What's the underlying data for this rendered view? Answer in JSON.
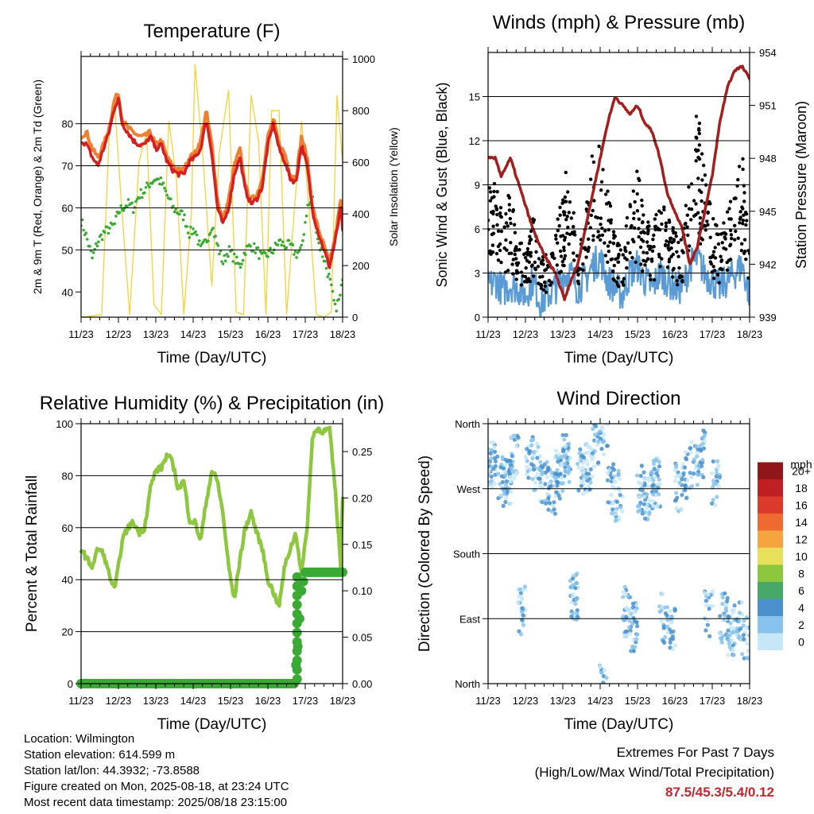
{
  "chart_data": [
    {
      "id": "temperature",
      "type": "line",
      "title": "Temperature (F)",
      "xlabel": "Time (Day/UTC)",
      "ylabel": "2m & 9m T (Red, Orange) & 2m Td (Green)",
      "ylabel_right": "Solar Insolation (Yellow)",
      "xticks": [
        "11/23",
        "12/23",
        "13/23",
        "14/23",
        "15/23",
        "16/23",
        "17/23",
        "18/23"
      ],
      "xlim": [
        0,
        7
      ],
      "yticks": [
        40,
        50,
        60,
        70,
        80
      ],
      "ylim": [
        34,
        96
      ],
      "yticks_right": [
        0,
        200,
        400,
        600,
        800,
        1000
      ],
      "ylim_right": [
        0,
        1010
      ],
      "series": [
        {
          "color": "#f08030",
          "x": [
            0,
            0.15,
            0.3,
            0.45,
            0.6,
            0.75,
            0.9,
            1.0,
            1.1,
            1.25,
            1.4,
            1.55,
            1.7,
            1.85,
            2.0,
            2.15,
            2.3,
            2.45,
            2.6,
            2.75,
            2.9,
            3.05,
            3.2,
            3.35,
            3.5,
            3.65,
            3.8,
            3.95,
            4.1,
            4.25,
            4.4,
            4.55,
            4.7,
            4.85,
            5.0,
            5.15,
            5.3,
            5.45,
            5.6,
            5.75,
            5.9,
            6.05,
            6.2,
            6.35,
            6.5,
            6.65,
            6.8,
            6.95,
            7.0
          ],
          "y": [
            77,
            78,
            74,
            72,
            75,
            79,
            86,
            87,
            81,
            79,
            78,
            77,
            77,
            78,
            75,
            76,
            72,
            70,
            69,
            69,
            72,
            73,
            76,
            83,
            75,
            62,
            57,
            62,
            70,
            74,
            65,
            62,
            63,
            67,
            77,
            81,
            75,
            73,
            68,
            67,
            77,
            72,
            60,
            55,
            51,
            47,
            53,
            62,
            57
          ]
        },
        {
          "color": "#d42020",
          "x": [
            0,
            0.15,
            0.3,
            0.45,
            0.6,
            0.75,
            0.9,
            1.0,
            1.1,
            1.25,
            1.4,
            1.55,
            1.7,
            1.85,
            2.0,
            2.15,
            2.3,
            2.45,
            2.6,
            2.75,
            2.9,
            3.05,
            3.2,
            3.35,
            3.5,
            3.65,
            3.8,
            3.95,
            4.1,
            4.25,
            4.4,
            4.55,
            4.7,
            4.85,
            5.0,
            5.15,
            5.3,
            5.45,
            5.6,
            5.75,
            5.9,
            6.05,
            6.2,
            6.35,
            6.5,
            6.65,
            6.8,
            6.95,
            7.0
          ],
          "y": [
            76,
            75,
            72,
            70,
            74,
            78,
            84,
            86,
            80,
            78,
            76,
            75,
            75,
            77,
            74,
            75,
            71,
            69,
            68,
            68,
            71,
            72,
            74,
            81,
            73,
            60,
            56,
            60,
            68,
            72,
            64,
            61,
            62,
            65,
            75,
            80,
            74,
            71,
            67,
            66,
            75,
            70,
            59,
            54,
            50,
            46,
            52,
            60,
            55
          ]
        },
        {
          "color": "#3aaa35",
          "x": [
            0,
            0.15,
            0.3,
            0.45,
            0.6,
            0.75,
            0.9,
            1.0,
            1.1,
            1.25,
            1.4,
            1.55,
            1.7,
            1.85,
            2.0,
            2.15,
            2.3,
            2.45,
            2.6,
            2.75,
            2.9,
            3.05,
            3.2,
            3.35,
            3.5,
            3.65,
            3.8,
            3.95,
            4.1,
            4.25,
            4.4,
            4.55,
            4.7,
            4.85,
            5.0,
            5.15,
            5.3,
            5.45,
            5.6,
            5.75,
            5.9,
            6.05,
            6.2,
            6.35,
            6.5,
            6.65,
            6.8,
            6.95,
            7.0
          ],
          "y": [
            57,
            53,
            48,
            52,
            54,
            55,
            56,
            59,
            60,
            61,
            60,
            63,
            64,
            66,
            67,
            66,
            63,
            60,
            59,
            58,
            54,
            55,
            50,
            52,
            56,
            51,
            47,
            50,
            48,
            46,
            50,
            51,
            50,
            48,
            49,
            50,
            52,
            51,
            51,
            49,
            50,
            60,
            62,
            52,
            48,
            43,
            36,
            39,
            44
          ]
        },
        {
          "color": "#f5d23a",
          "axis": "right",
          "x": [
            0,
            0.55,
            0.75,
            0.9,
            1.1,
            1.3,
            1.55,
            1.75,
            1.95,
            2.15,
            2.35,
            2.55,
            2.75,
            2.95,
            3.05,
            3.25,
            3.5,
            3.7,
            3.95,
            4.15,
            4.35,
            4.55,
            4.75,
            4.95,
            5.1,
            5.3,
            5.5,
            5.7,
            5.9,
            6.1,
            6.3,
            6.5,
            6.7,
            6.85,
            7.0
          ],
          "y": [
            0,
            10,
            700,
            820,
            400,
            10,
            600,
            720,
            50,
            10,
            760,
            540,
            10,
            400,
            980,
            640,
            120,
            640,
            880,
            20,
            10,
            860,
            680,
            10,
            800,
            800,
            10,
            400,
            760,
            420,
            10,
            0,
            20,
            860,
            600
          ]
        }
      ]
    },
    {
      "id": "winds",
      "type": "scatter",
      "title": "Winds (mph) & Pressure (mb)",
      "xlabel": "Time (Day/UTC)",
      "ylabel": "Sonic Wind & Gust (Blue, Black)",
      "ylabel_right": "Station Pressure (Maroon)",
      "xticks": [
        "11/23",
        "12/23",
        "13/23",
        "14/23",
        "15/23",
        "16/23",
        "17/23",
        "18/23"
      ],
      "xlim": [
        0,
        7
      ],
      "yticks": [
        0,
        3,
        6,
        9,
        12,
        15
      ],
      "ylim": [
        0,
        18
      ],
      "yticks_right": [
        939,
        942,
        945,
        948,
        951,
        954
      ],
      "ylim_right": [
        939,
        954
      ],
      "series": [
        {
          "color": "#5b9bd5",
          "x": [
            0,
            0.2,
            0.4,
            0.6,
            0.8,
            1.0,
            1.2,
            1.4,
            1.6,
            1.8,
            2.0,
            2.2,
            2.4,
            2.6,
            2.8,
            3.0,
            3.2,
            3.4,
            3.6,
            3.8,
            4.0,
            4.2,
            4.4,
            4.6,
            4.8,
            5.0,
            5.2,
            5.4,
            5.6,
            5.8,
            6.0,
            6.2,
            6.4,
            6.6,
            6.8,
            7.0
          ],
          "y": [
            2,
            2.5,
            1.8,
            2.2,
            2,
            1.5,
            2.5,
            1,
            1.5,
            2,
            2.8,
            3,
            2,
            2.5,
            3.5,
            4,
            2.5,
            2,
            1.5,
            3,
            3.5,
            2.5,
            2,
            3,
            2.5,
            2,
            2,
            3.5,
            4,
            3,
            2.5,
            2,
            2.5,
            3,
            3.5,
            1.5
          ]
        },
        {
          "color": "#000000",
          "x": [
            0,
            0.2,
            0.4,
            0.6,
            0.8,
            1.0,
            1.2,
            1.4,
            1.6,
            1.8,
            2.0,
            2.2,
            2.4,
            2.6,
            2.8,
            3.0,
            3.2,
            3.4,
            3.6,
            3.8,
            4.0,
            4.2,
            4.4,
            4.6,
            4.8,
            5.0,
            5.2,
            5.4,
            5.6,
            5.8,
            6.0,
            6.2,
            6.4,
            6.6,
            6.8,
            7.0
          ],
          "y": [
            6,
            7,
            5,
            6,
            4,
            3,
            5,
            3,
            3,
            4,
            6,
            8,
            3,
            5,
            8,
            9,
            6,
            4,
            3,
            6,
            7,
            5,
            4,
            6,
            5,
            4,
            4,
            8,
            10,
            7,
            5,
            4,
            5,
            6,
            8,
            3
          ]
        },
        {
          "color": "#a31f1f",
          "axis": "right",
          "x": [
            0,
            0.2,
            0.35,
            0.6,
            0.9,
            1.2,
            1.5,
            1.8,
            2.05,
            2.2,
            2.4,
            2.6,
            2.8,
            3.0,
            3.2,
            3.4,
            3.6,
            3.8,
            4.0,
            4.2,
            4.4,
            4.6,
            4.8,
            5.0,
            5.2,
            5.4,
            5.6,
            5.8,
            6.0,
            6.2,
            6.4,
            6.6,
            6.8,
            7.0
          ],
          "y": [
            948,
            948,
            947,
            948,
            946,
            944,
            942.5,
            941.5,
            940,
            941,
            942,
            944,
            946,
            948,
            950,
            951.5,
            951,
            950.5,
            951,
            950,
            949.5,
            948,
            946,
            945,
            944,
            942,
            943,
            945,
            947,
            950,
            952,
            953,
            953.2,
            952.5
          ]
        }
      ]
    },
    {
      "id": "humidity",
      "type": "line",
      "title": "Relative Humidity (%) & Precipitation (in)",
      "xlabel": "Time (Day/UTC)",
      "ylabel": "Percent & Total Rainfall",
      "xticks": [
        "11/23",
        "12/23",
        "13/23",
        "14/23",
        "15/23",
        "16/23",
        "17/23",
        "18/23"
      ],
      "xlim": [
        0,
        7
      ],
      "yticks": [
        0,
        20,
        40,
        60,
        80,
        100
      ],
      "ylim": [
        0,
        100
      ],
      "yticks_right": [
        "0.00",
        "0.05",
        "0.10",
        "0.15",
        "0.20",
        "0.25"
      ],
      "ylim_right": [
        0,
        0.28
      ],
      "series": [
        {
          "color": "#8dc63f",
          "x": [
            0,
            0.15,
            0.3,
            0.45,
            0.6,
            0.75,
            0.9,
            1.0,
            1.1,
            1.25,
            1.4,
            1.55,
            1.7,
            1.85,
            2.0,
            2.15,
            2.3,
            2.45,
            2.6,
            2.75,
            2.9,
            3.05,
            3.2,
            3.35,
            3.5,
            3.65,
            3.8,
            3.95,
            4.1,
            4.25,
            4.4,
            4.55,
            4.7,
            4.85,
            5.0,
            5.15,
            5.3,
            5.45,
            5.6,
            5.75,
            5.9,
            6.05,
            6.2,
            6.35,
            6.5,
            6.65,
            6.8,
            6.95,
            7.0
          ],
          "y": [
            52,
            48,
            45,
            52,
            50,
            42,
            36,
            45,
            55,
            60,
            62,
            58,
            60,
            75,
            82,
            83,
            88,
            85,
            75,
            78,
            63,
            62,
            55,
            70,
            82,
            78,
            65,
            45,
            32,
            48,
            60,
            66,
            58,
            52,
            40,
            35,
            30,
            45,
            52,
            58,
            42,
            60,
            96,
            98,
            97,
            98,
            75,
            45,
            72
          ]
        },
        {
          "color": "#3aaa35",
          "axis": "right",
          "x": [
            0,
            1,
            2,
            3,
            4,
            5,
            5.7,
            5.75,
            5.8,
            5.85,
            5.9,
            6.0,
            6.3,
            6.6,
            7.0
          ],
          "y": [
            0,
            0,
            0,
            0,
            0,
            0,
            0,
            0.02,
            0.04,
            0.07,
            0.1,
            0.12,
            0.12,
            0.12,
            0.12
          ]
        }
      ]
    },
    {
      "id": "direction",
      "type": "scatter",
      "title": "Wind Direction",
      "xlabel": "Time (Day/UTC)",
      "ylabel": "Direction (Colored By Speed)",
      "xticks": [
        "11/23",
        "12/23",
        "13/23",
        "14/23",
        "15/23",
        "16/23",
        "17/23",
        "18/23"
      ],
      "xlim": [
        0,
        7
      ],
      "yticks": [
        "North",
        "East",
        "South",
        "West",
        "North"
      ],
      "ylim": [
        0,
        360
      ],
      "legend_title": "mph",
      "legend_labels": [
        "0",
        "2",
        "4",
        "6",
        "8",
        "10",
        "12",
        "14",
        "16",
        "18",
        "20+"
      ],
      "legend_colors": [
        "#c6e7f8",
        "#87c3ec",
        "#4a90cc",
        "#48a868",
        "#8dc63f",
        "#e8e05a",
        "#f5a540",
        "#ee6a30",
        "#dc3a2a",
        "#c01f24",
        "#8f1719"
      ],
      "series": [
        {
          "x": [
            0.1,
            0.3,
            0.5,
            0.7,
            0.9,
            1.1,
            1.3,
            1.5,
            1.7,
            1.9,
            2.1,
            2.3,
            2.5,
            2.7,
            2.9,
            3.1,
            3.3,
            3.5,
            3.7,
            3.9,
            4.1,
            4.3,
            4.5,
            4.7,
            4.9,
            5.1,
            5.3,
            5.5,
            5.7,
            5.9,
            6.1,
            6.3,
            6.5,
            6.7,
            6.9
          ],
          "y": [
            300,
            290,
            280,
            310,
            100,
            320,
            300,
            280,
            270,
            290,
            310,
            120,
            290,
            300,
            330,
            350,
            270,
            260,
            100,
            80,
            270,
            260,
            280,
            90,
            80,
            270,
            290,
            300,
            320,
            100,
            280,
            90,
            70,
            80,
            60
          ]
        }
      ]
    }
  ],
  "footer": {
    "location": "Location: Wilmington",
    "elevation": "Station elevation: 614.599 m",
    "latlon": "Station lat/lon: 44.3932; -73.8588",
    "created": "Figure created on Mon, 2025-08-18, at 23:24 UTC",
    "recent": "Most recent data timestamp: 2025/08/18 23:15:00"
  },
  "extremes": {
    "title": "Extremes For Past 7 Days",
    "subtitle": "(High/Low/Max Wind/Total Precipitation)",
    "values": "87.5/45.3/5.4/0.12"
  }
}
